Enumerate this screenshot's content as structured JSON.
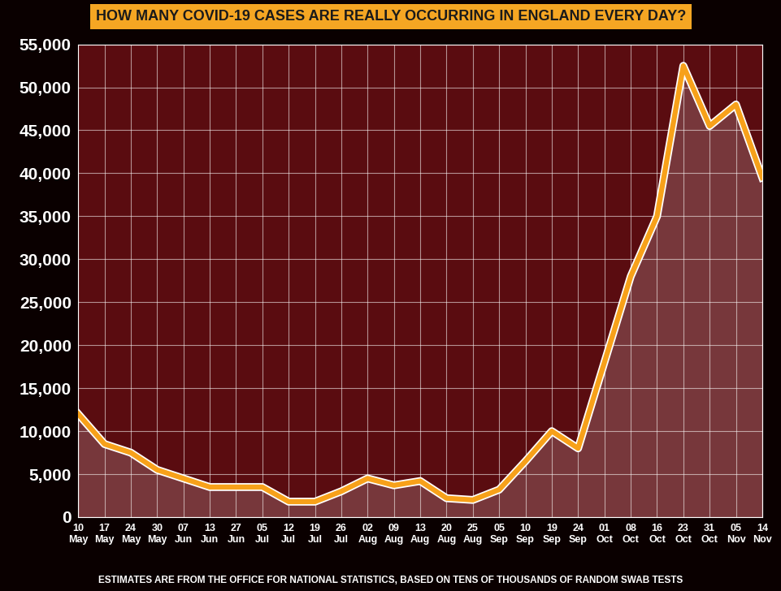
{
  "chart_data": {
    "type": "line",
    "title": "HOW MANY COVID-19 CASES ARE REALLY OCCURRING IN ENGLAND EVERY DAY?",
    "footnote": "ESTIMATES ARE FROM THE OFFICE FOR NATIONAL STATISTICS, BASED ON TENS OF THOUSANDS OF RANDOM SWAB TESTS",
    "categories": [
      "10 May",
      "17 May",
      "24 May",
      "30 May",
      "07 Jun",
      "13 Jun",
      "27 Jun",
      "05 Jul",
      "12 Jul",
      "19 Jul",
      "26 Jul",
      "02 Aug",
      "09 Aug",
      "13 Aug",
      "20 Aug",
      "25 Aug",
      "05 Sep",
      "10 Sep",
      "19 Sep",
      "24 Sep",
      "01 Oct",
      "08 Oct",
      "16 Oct",
      "23 Oct",
      "31 Oct",
      "05 Nov",
      "14 Nov"
    ],
    "values": [
      12000,
      8500,
      7500,
      5500,
      4500,
      3500,
      3500,
      3500,
      1800,
      1800,
      3000,
      4500,
      3700,
      4200,
      2200,
      2000,
      3200,
      6500,
      10000,
      8000,
      18000,
      28000,
      35000,
      52500,
      45500,
      48000,
      39500
    ],
    "color": "#f7a11a",
    "ylim": [
      0,
      55000
    ],
    "yticks": [
      0,
      {
        "value": 5000,
        "label": "5,000"
      },
      {
        "value": 10000,
        "label": "10,000"
      },
      {
        "value": 15000,
        "label": "15,000"
      },
      {
        "value": 20000,
        "label": "20,000"
      },
      {
        "value": 25000,
        "label": "25,000"
      },
      {
        "value": 30000,
        "label": "30,000"
      },
      {
        "value": 35000,
        "label": "35,000"
      },
      {
        "value": 40000,
        "label": "40,000"
      },
      {
        "value": 45000,
        "label": "45,000"
      },
      {
        "value": 50000,
        "label": "50,000"
      },
      {
        "value": 55000,
        "label": "55,000"
      }
    ],
    "grid": true
  }
}
